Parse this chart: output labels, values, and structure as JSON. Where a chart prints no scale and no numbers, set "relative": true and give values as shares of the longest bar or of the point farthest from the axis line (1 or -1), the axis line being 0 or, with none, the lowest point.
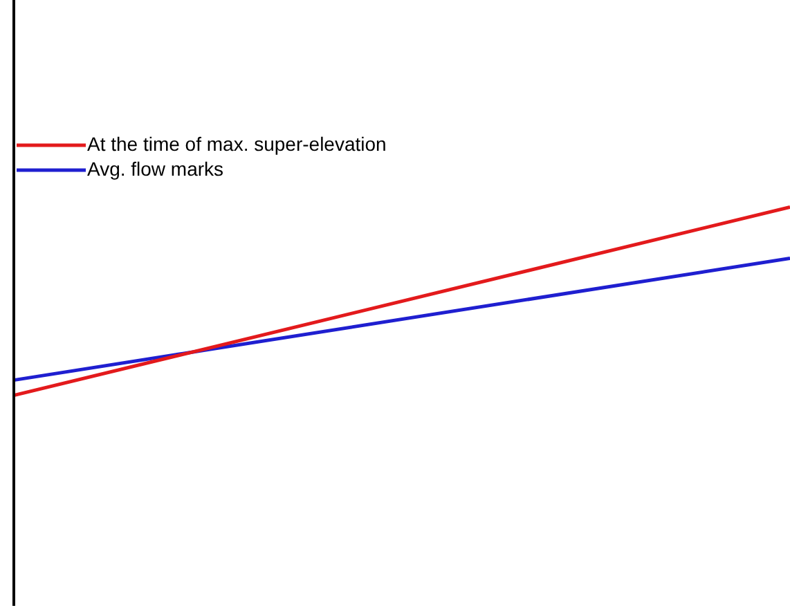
{
  "chart_data": {
    "type": "line",
    "relative": true,
    "categories": [
      null,
      null
    ],
    "series": [
      {
        "name": "At the time of max. super-elevation",
        "color": "#e31a1c",
        "values": [
          0,
          1
        ]
      },
      {
        "name": "Avg. flow marks",
        "color": "#1f1fd0",
        "values": [
          0.081,
          0.728
        ]
      }
    ],
    "legend": "top left",
    "marker": "none",
    "line_style": "solid"
  }
}
